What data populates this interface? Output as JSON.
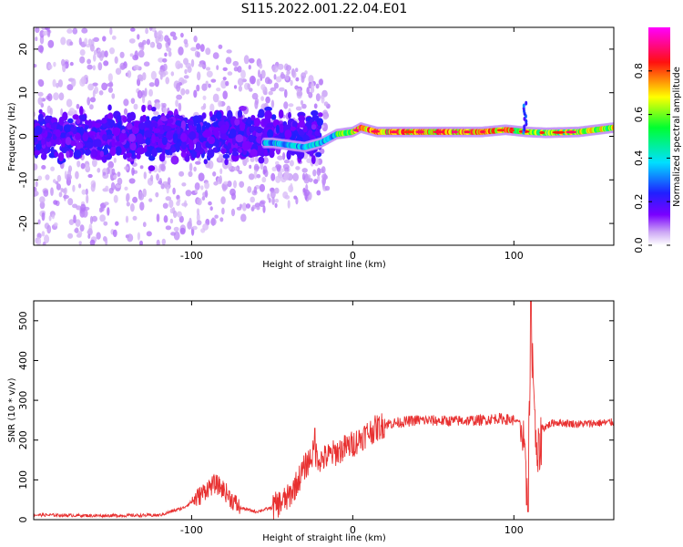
{
  "figure": {
    "title": "S115.2022.001.22.04.E01"
  },
  "chart_data": [
    {
      "type": "heatmap",
      "xlabel": "Height of straight line (km)",
      "ylabel": "Frequency (Hz)",
      "xlim": [
        -198,
        162
      ],
      "ylim": [
        -25,
        25
      ],
      "x_ticks": [
        -100,
        0,
        100
      ],
      "x_tick_labels": [
        "-100",
        "0",
        "100"
      ],
      "y_ticks": [
        -20,
        -10,
        0,
        10,
        20
      ],
      "y_tick_labels": [
        "-20",
        "-10",
        "0",
        "10",
        "20"
      ],
      "grid": false,
      "colorbar": {
        "label": "Normalized spectral amplitude",
        "range": [
          0,
          1
        ],
        "ticks": [
          0.0,
          0.2,
          0.4,
          0.6,
          0.8
        ],
        "tick_labels": [
          "0.0",
          "0.2",
          "0.4",
          "0.6",
          "0.8"
        ],
        "colormap": "rainbow (white-purple-blue-cyan-green-yellow-red-magenta)"
      },
      "features": {
        "noise_region_x": [
          -198,
          -25
        ],
        "noise_band_center_hz": 0,
        "noise_band_halfwidth_hz": 5,
        "ridge_points": [
          {
            "x": -50,
            "y": -1.5
          },
          {
            "x": -30,
            "y": -2.5
          },
          {
            "x": -20,
            "y": -1.5
          },
          {
            "x": -10,
            "y": 0.5
          },
          {
            "x": 0,
            "y": 1
          },
          {
            "x": 5,
            "y": 2
          },
          {
            "x": 15,
            "y": 1
          },
          {
            "x": 40,
            "y": 1
          },
          {
            "x": 80,
            "y": 1
          },
          {
            "x": 95,
            "y": 1.5
          },
          {
            "x": 108,
            "y": 1
          },
          {
            "x": 120,
            "y": 0.8
          },
          {
            "x": 140,
            "y": 1
          },
          {
            "x": 162,
            "y": 2
          }
        ],
        "peak_amplitude_x_range": [
          0,
          100
        ]
      }
    },
    {
      "type": "line",
      "xlabel": "Height of straight line (km)",
      "ylabel": "SNR (10 * v/v)",
      "xlim": [
        -198,
        162
      ],
      "ylim": [
        0,
        550
      ],
      "x_ticks": [
        -100,
        0,
        100
      ],
      "x_tick_labels": [
        "-100",
        "0",
        "100"
      ],
      "y_ticks": [
        0,
        100,
        200,
        300,
        400,
        500
      ],
      "y_tick_labels": [
        "0",
        "100",
        "200",
        "300",
        "400",
        "500"
      ],
      "grid": false,
      "series_color": "#e83030",
      "series": [
        {
          "x": [
            -198,
            -160,
            -120,
            -105,
            -95,
            -90,
            -85,
            -80,
            -75,
            -70,
            -60,
            -50,
            -40,
            -35,
            -30,
            -27,
            -24,
            -20,
            -10,
            0,
            10,
            20,
            30,
            40,
            60,
            80,
            90,
            100,
            104,
            106,
            108,
            110,
            112,
            114,
            118,
            125,
            140,
            162
          ],
          "y": [
            12,
            10,
            11,
            30,
            60,
            80,
            90,
            75,
            50,
            30,
            20,
            30,
            55,
            90,
            130,
            150,
            170,
            150,
            170,
            190,
            220,
            240,
            245,
            250,
            248,
            250,
            255,
            250,
            245,
            180,
            60,
            320,
            400,
            130,
            230,
            245,
            240,
            245
          ]
        }
      ]
    }
  ]
}
